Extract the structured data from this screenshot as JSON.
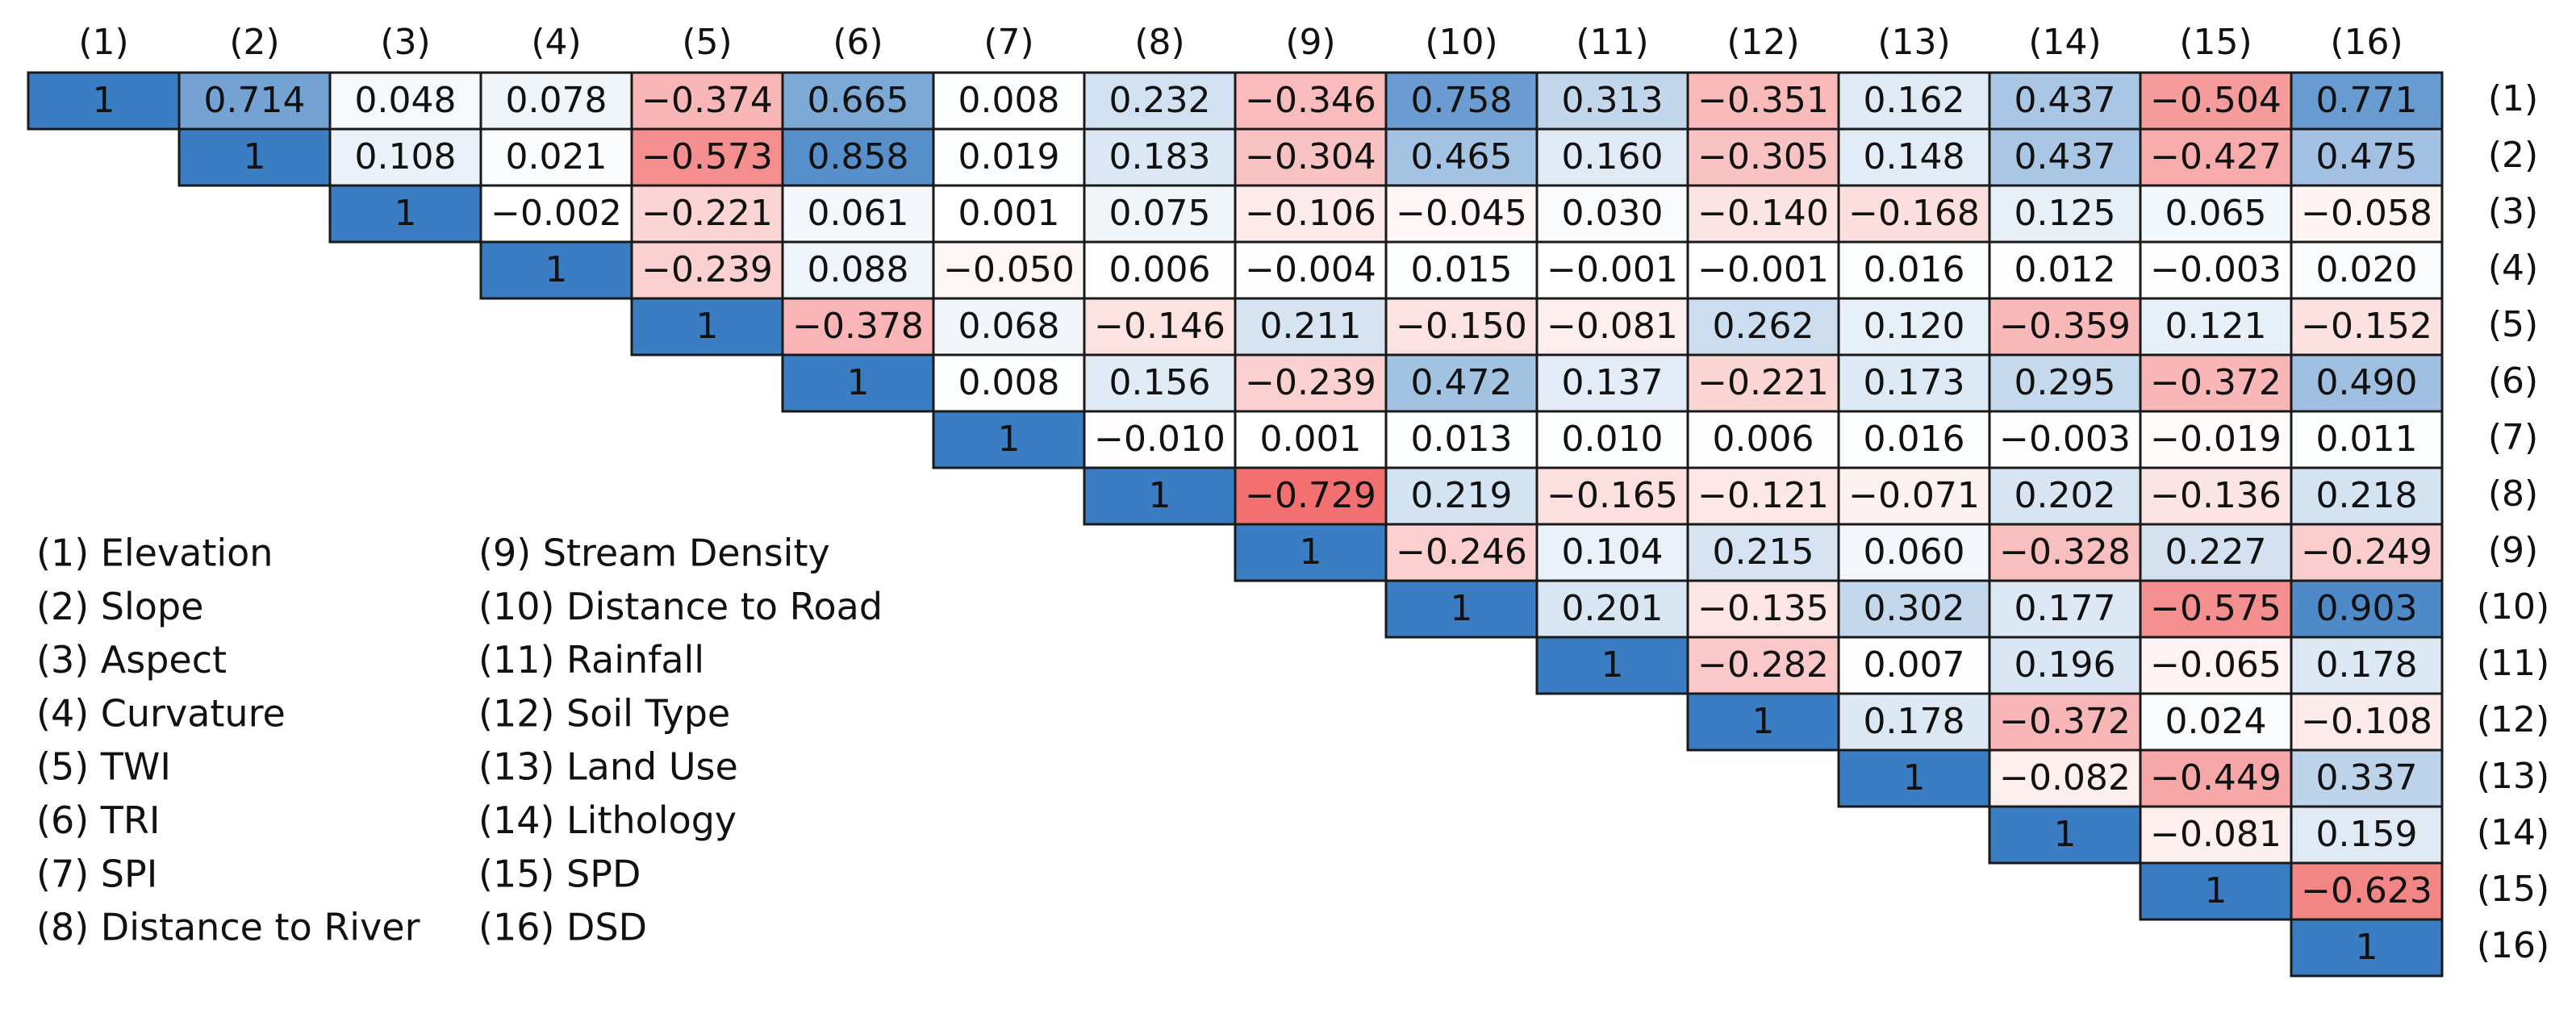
{
  "chart_data": {
    "type": "heatmap",
    "categories": [
      "(1)",
      "(2)",
      "(3)",
      "(4)",
      "(5)",
      "(6)",
      "(7)",
      "(8)",
      "(9)",
      "(10)",
      "(11)",
      "(12)",
      "(13)",
      "(14)",
      "(15)",
      "(16)"
    ],
    "legend_items": [
      "(1) Elevation",
      "(2) Slope",
      "(3) Aspect",
      "(4) Curvature",
      "(5) TWI",
      "(6) TRI",
      "(7) SPI",
      "(8) Distance to River",
      "(9) Stream Density",
      "(10) Distance to Road",
      "(11) Rainfall",
      "(12) Soil Type",
      "(13) Land Use",
      "(14) Lithology",
      "(15) SPD",
      "(16) DSD"
    ],
    "positive_color": "#3b7dc2",
    "negative_color": "#ee3b3b",
    "values": [
      [
        1,
        0.714,
        0.048,
        0.078,
        -0.374,
        0.665,
        0.008,
        0.232,
        -0.346,
        0.758,
        0.313,
        -0.351,
        0.162,
        0.437,
        -0.504,
        0.771
      ],
      [
        null,
        1,
        0.108,
        0.021,
        -0.573,
        0.858,
        0.019,
        0.183,
        -0.304,
        0.465,
        0.16,
        -0.305,
        0.148,
        0.437,
        -0.427,
        0.475
      ],
      [
        null,
        null,
        1,
        -0.002,
        -0.221,
        0.061,
        0.001,
        0.075,
        -0.106,
        -0.045,
        0.03,
        -0.14,
        -0.168,
        0.125,
        0.065,
        -0.058
      ],
      [
        null,
        null,
        null,
        1,
        -0.239,
        0.088,
        -0.05,
        0.006,
        -0.004,
        0.015,
        -0.001,
        -0.001,
        0.016,
        0.012,
        -0.003,
        0.02
      ],
      [
        null,
        null,
        null,
        null,
        1,
        -0.378,
        0.068,
        -0.146,
        0.211,
        -0.15,
        -0.081,
        0.262,
        0.12,
        -0.359,
        0.121,
        -0.152
      ],
      [
        null,
        null,
        null,
        null,
        null,
        1,
        0.008,
        0.156,
        -0.239,
        0.472,
        0.137,
        -0.221,
        0.173,
        0.295,
        -0.372,
        0.49
      ],
      [
        null,
        null,
        null,
        null,
        null,
        null,
        1,
        -0.01,
        0.001,
        0.013,
        0.01,
        0.006,
        0.016,
        -0.003,
        -0.019,
        0.011
      ],
      [
        null,
        null,
        null,
        null,
        null,
        null,
        null,
        1,
        -0.729,
        0.219,
        -0.165,
        -0.121,
        -0.071,
        0.202,
        -0.136,
        0.218
      ],
      [
        null,
        null,
        null,
        null,
        null,
        null,
        null,
        null,
        1,
        -0.246,
        0.104,
        0.215,
        0.06,
        -0.328,
        0.227,
        -0.249
      ],
      [
        null,
        null,
        null,
        null,
        null,
        null,
        null,
        null,
        null,
        1,
        0.201,
        -0.135,
        0.302,
        0.177,
        -0.575,
        0.903
      ],
      [
        null,
        null,
        null,
        null,
        null,
        null,
        null,
        null,
        null,
        null,
        1,
        -0.282,
        0.007,
        0.196,
        -0.065,
        0.178
      ],
      [
        null,
        null,
        null,
        null,
        null,
        null,
        null,
        null,
        null,
        null,
        null,
        1,
        0.178,
        -0.372,
        0.024,
        -0.108
      ],
      [
        null,
        null,
        null,
        null,
        null,
        null,
        null,
        null,
        null,
        null,
        null,
        null,
        1,
        -0.082,
        -0.449,
        0.337
      ],
      [
        null,
        null,
        null,
        null,
        null,
        null,
        null,
        null,
        null,
        null,
        null,
        null,
        null,
        1,
        -0.081,
        0.159
      ],
      [
        null,
        null,
        null,
        null,
        null,
        null,
        null,
        null,
        null,
        null,
        null,
        null,
        null,
        null,
        1,
        -0.623
      ],
      [
        null,
        null,
        null,
        null,
        null,
        null,
        null,
        null,
        null,
        null,
        null,
        null,
        null,
        null,
        null,
        1
      ]
    ],
    "value_labels": [
      [
        "1",
        "0.714",
        "0.048",
        "0.078",
        "−0.374",
        "0.665",
        "0.008",
        "0.232",
        "−0.346",
        "0.758",
        "0.313",
        "−0.351",
        "0.162",
        "0.437",
        "−0.504",
        "0.771"
      ],
      [
        null,
        "1",
        "0.108",
        "0.021",
        "−0.573",
        "0.858",
        "0.019",
        "0.183",
        "−0.304",
        "0.465",
        "0.160",
        "−0.305",
        "0.148",
        "0.437",
        "−0.427",
        "0.475"
      ],
      [
        null,
        null,
        "1",
        "−0.002",
        "−0.221",
        "0.061",
        "0.001",
        "0.075",
        "−0.106",
        "−0.045",
        "0.030",
        "−0.140",
        "−0.168",
        "0.125",
        "0.065",
        "−0.058"
      ],
      [
        null,
        null,
        null,
        "1",
        "−0.239",
        "0.088",
        "−0.050",
        "0.006",
        "−0.004",
        "0.015",
        "−0.001",
        "−0.001",
        "0.016",
        "0.012",
        "−0.003",
        "0.020"
      ],
      [
        null,
        null,
        null,
        null,
        "1",
        "−0.378",
        "0.068",
        "−0.146",
        "0.211",
        "−0.150",
        "−0.081",
        "0.262",
        "0.120",
        "−0.359",
        "0.121",
        "−0.152"
      ],
      [
        null,
        null,
        null,
        null,
        null,
        "1",
        "0.008",
        "0.156",
        "−0.239",
        "0.472",
        "0.137",
        "−0.221",
        "0.173",
        "0.295",
        "−0.372",
        "0.490"
      ],
      [
        null,
        null,
        null,
        null,
        null,
        null,
        "1",
        "−0.010",
        "0.001",
        "0.013",
        "0.010",
        "0.006",
        "0.016",
        "−0.003",
        "−0.019",
        "0.011"
      ],
      [
        null,
        null,
        null,
        null,
        null,
        null,
        null,
        "1",
        "−0.729",
        "0.219",
        "−0.165",
        "−0.121",
        "−0.071",
        "0.202",
        "−0.136",
        "0.218"
      ],
      [
        null,
        null,
        null,
        null,
        null,
        null,
        null,
        null,
        "1",
        "−0.246",
        "0.104",
        "0.215",
        "0.060",
        "−0.328",
        "0.227",
        "−0.249"
      ],
      [
        null,
        null,
        null,
        null,
        null,
        null,
        null,
        null,
        null,
        "1",
        "0.201",
        "−0.135",
        "0.302",
        "0.177",
        "−0.575",
        "0.903"
      ],
      [
        null,
        null,
        null,
        null,
        null,
        null,
        null,
        null,
        null,
        null,
        "1",
        "−0.282",
        "0.007",
        "0.196",
        "−0.065",
        "0.178"
      ],
      [
        null,
        null,
        null,
        null,
        null,
        null,
        null,
        null,
        null,
        null,
        null,
        "1",
        "0.178",
        "−0.372",
        "0.024",
        "−0.108"
      ],
      [
        null,
        null,
        null,
        null,
        null,
        null,
        null,
        null,
        null,
        null,
        null,
        null,
        "1",
        "−0.082",
        "−0.449",
        "0.337"
      ],
      [
        null,
        null,
        null,
        null,
        null,
        null,
        null,
        null,
        null,
        null,
        null,
        null,
        null,
        "1",
        "−0.081",
        "0.159"
      ],
      [
        null,
        null,
        null,
        null,
        null,
        null,
        null,
        null,
        null,
        null,
        null,
        null,
        null,
        null,
        "1",
        "−0.623"
      ],
      [
        null,
        null,
        null,
        null,
        null,
        null,
        null,
        null,
        null,
        null,
        null,
        null,
        null,
        null,
        null,
        "1"
      ]
    ]
  }
}
